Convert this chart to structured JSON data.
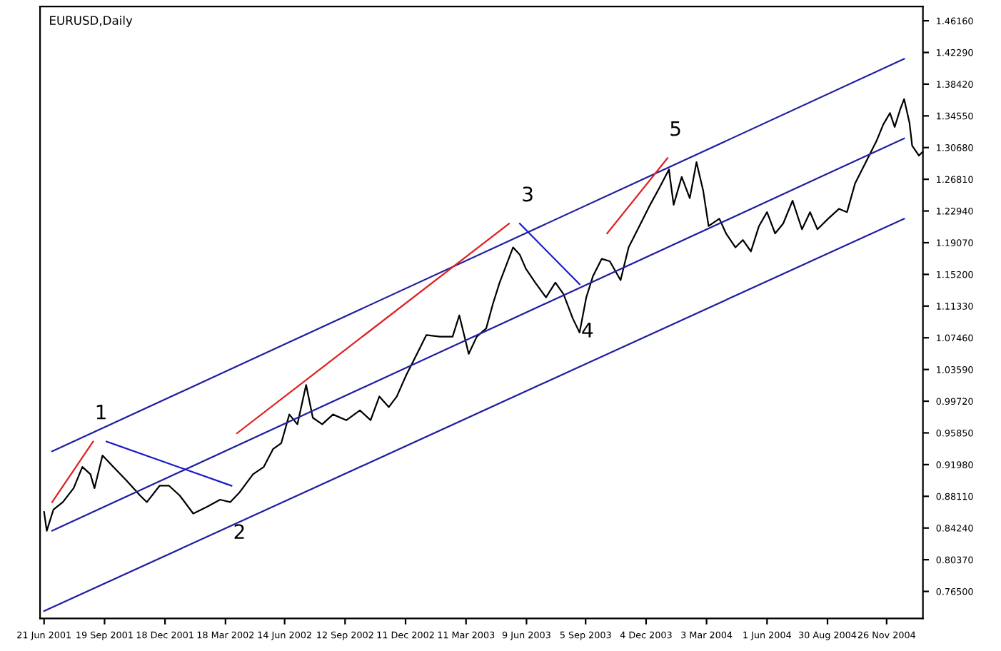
{
  "chart_data": {
    "type": "line",
    "title": "EURUSD,Daily",
    "xlim": [
      "2001-06-15",
      "2005-01-19"
    ],
    "ylim": [
      0.732,
      1.479
    ],
    "xticks": [
      {
        "value": "2001-06-21",
        "label": "21 Jun 2001"
      },
      {
        "value": "2001-09-19",
        "label": "19 Sep 2001"
      },
      {
        "value": "2001-12-18",
        "label": "18 Dec 2001"
      },
      {
        "value": "2002-03-18",
        "label": "18 Mar 2002"
      },
      {
        "value": "2002-06-14",
        "label": "14 Jun 2002"
      },
      {
        "value": "2002-09-12",
        "label": "12 Sep 2002"
      },
      {
        "value": "2002-12-11",
        "label": "11 Dec 2002"
      },
      {
        "value": "2003-03-11",
        "label": "11 Mar 2003"
      },
      {
        "value": "2003-06-09",
        "label": "9 Jun 2003"
      },
      {
        "value": "2003-09-05",
        "label": "5 Sep 2003"
      },
      {
        "value": "2003-12-04",
        "label": "4 Dec 2003"
      },
      {
        "value": "2004-03-03",
        "label": "3 Mar 2004"
      },
      {
        "value": "2004-06-01",
        "label": "1 Jun 2004"
      },
      {
        "value": "2004-08-30",
        "label": "30 Aug 2004"
      },
      {
        "value": "2004-11-26",
        "label": "26 Nov 2004"
      }
    ],
    "yticks": [
      {
        "value": 1.4616,
        "label": "1.46160"
      },
      {
        "value": 1.4229,
        "label": "1.42290"
      },
      {
        "value": 1.3842,
        "label": "1.38420"
      },
      {
        "value": 1.3455,
        "label": "1.34550"
      },
      {
        "value": 1.3068,
        "label": "1.30680"
      },
      {
        "value": 1.2681,
        "label": "1.26810"
      },
      {
        "value": 1.2294,
        "label": "1.22940"
      },
      {
        "value": 1.1907,
        "label": "1.19070"
      },
      {
        "value": 1.152,
        "label": "1.15200"
      },
      {
        "value": 1.1133,
        "label": "1.11330"
      },
      {
        "value": 1.0746,
        "label": "1.07460"
      },
      {
        "value": 1.0359,
        "label": "1.03590"
      },
      {
        "value": 0.9972,
        "label": "0.99720"
      },
      {
        "value": 0.9585,
        "label": "0.95850"
      },
      {
        "value": 0.9198,
        "label": "0.91980"
      },
      {
        "value": 0.8811,
        "label": "0.88110"
      },
      {
        "value": 0.8424,
        "label": "0.84240"
      },
      {
        "value": 0.8037,
        "label": "0.80370"
      },
      {
        "value": 0.765,
        "label": "0.76500"
      }
    ],
    "grid": false,
    "legend": false,
    "series": [
      {
        "color": "#000000",
        "x": [
          "2001-06-21",
          "2001-06-25",
          "2001-07-05",
          "2001-07-19",
          "2001-08-04",
          "2001-08-17",
          "2001-08-29",
          "2001-09-04",
          "2001-09-16",
          "2001-10-02",
          "2001-10-22",
          "2001-11-11",
          "2001-11-21",
          "2001-12-10",
          "2001-12-24",
          "2002-01-09",
          "2002-01-29",
          "2002-02-18",
          "2002-03-10",
          "2002-03-25",
          "2002-04-08",
          "2002-04-28",
          "2002-05-14",
          "2002-05-28",
          "2002-06-09",
          "2002-06-21",
          "2002-07-03",
          "2002-07-16",
          "2002-07-26",
          "2002-08-09",
          "2002-08-25",
          "2002-09-14",
          "2002-10-04",
          "2002-10-20",
          "2002-11-02",
          "2002-11-16",
          "2002-11-28",
          "2002-12-12",
          "2002-12-28",
          "2003-01-11",
          "2003-01-31",
          "2003-02-19",
          "2003-03-01",
          "2003-03-15",
          "2003-03-27",
          "2003-04-10",
          "2003-04-20",
          "2003-04-30",
          "2003-05-20",
          "2003-05-30",
          "2003-06-08",
          "2003-06-22",
          "2003-07-08",
          "2003-07-22",
          "2003-08-03",
          "2003-08-17",
          "2003-08-27",
          "2003-09-06",
          "2003-09-16",
          "2003-09-29",
          "2003-10-11",
          "2003-10-27",
          "2003-11-08",
          "2003-11-24",
          "2003-12-10",
          "2003-12-24",
          "2004-01-07",
          "2004-01-14",
          "2004-01-26",
          "2004-02-07",
          "2004-02-17",
          "2004-02-27",
          "2004-03-06",
          "2004-03-22",
          "2004-04-01",
          "2004-04-15",
          "2004-04-26",
          "2004-05-08",
          "2004-05-20",
          "2004-06-01",
          "2004-06-13",
          "2004-06-25",
          "2004-07-09",
          "2004-07-23",
          "2004-08-04",
          "2004-08-15",
          "2004-08-31",
          "2004-09-16",
          "2004-09-28",
          "2004-10-10",
          "2004-10-26",
          "2004-11-11",
          "2004-11-21",
          "2004-12-01",
          "2004-12-08",
          "2004-12-16",
          "2004-12-22",
          "2004-12-30",
          "2005-01-03",
          "2005-01-13",
          "2005-01-19"
        ],
        "values": [
          0.862,
          0.839,
          0.865,
          0.874,
          0.891,
          0.917,
          0.908,
          0.891,
          0.931,
          0.917,
          0.9,
          0.882,
          0.874,
          0.894,
          0.894,
          0.882,
          0.86,
          0.868,
          0.877,
          0.874,
          0.886,
          0.908,
          0.917,
          0.939,
          0.946,
          0.981,
          0.969,
          1.017,
          0.977,
          0.969,
          0.981,
          0.974,
          0.986,
          0.974,
          1.003,
          0.99,
          1.003,
          1.029,
          1.055,
          1.078,
          1.076,
          1.076,
          1.102,
          1.055,
          1.076,
          1.086,
          1.116,
          1.142,
          1.185,
          1.176,
          1.159,
          1.142,
          1.124,
          1.142,
          1.128,
          1.098,
          1.081,
          1.124,
          1.15,
          1.171,
          1.168,
          1.145,
          1.185,
          1.211,
          1.237,
          1.258,
          1.28,
          1.237,
          1.271,
          1.245,
          1.289,
          1.254,
          1.211,
          1.22,
          1.202,
          1.185,
          1.194,
          1.18,
          1.211,
          1.228,
          1.202,
          1.214,
          1.242,
          1.207,
          1.228,
          1.207,
          1.22,
          1.232,
          1.228,
          1.263,
          1.289,
          1.315,
          1.335,
          1.349,
          1.332,
          1.353,
          1.366,
          1.337,
          1.309,
          1.297,
          1.302
        ]
      },
      {
        "color": "#2020a0",
        "x": [
          "2001-07-03",
          "2004-12-22"
        ],
        "values": [
          0.936,
          1.415
        ]
      },
      {
        "color": "#2020a0",
        "x": [
          "2001-07-03",
          "2004-12-22"
        ],
        "values": [
          0.839,
          1.318
        ]
      },
      {
        "color": "#2020a0",
        "x": [
          "2001-06-21",
          "2004-12-22"
        ],
        "values": [
          0.741,
          1.22
        ]
      },
      {
        "color": "#e02020",
        "x": [
          "2001-07-03",
          "2001-09-02"
        ],
        "values": [
          0.874,
          0.948
        ]
      },
      {
        "color": "#1a1acc",
        "x": [
          "2001-09-22",
          "2002-03-27"
        ],
        "values": [
          0.948,
          0.894
        ]
      },
      {
        "color": "#e02020",
        "x": [
          "2002-04-04",
          "2003-05-14"
        ],
        "values": [
          0.958,
          1.214
        ]
      },
      {
        "color": "#1a1acc",
        "x": [
          "2003-05-30",
          "2003-08-27"
        ],
        "values": [
          1.214,
          1.14
        ]
      },
      {
        "color": "#e02020",
        "x": [
          "2003-10-07",
          "2004-01-05"
        ],
        "values": [
          1.202,
          1.294
        ]
      }
    ],
    "annotations": [
      {
        "text": "1",
        "x": "2001-09-02",
        "y": 0.948
      },
      {
        "text": "2",
        "x": "2002-03-27",
        "y": 0.894
      },
      {
        "text": "3",
        "x": "2003-05-30",
        "y": 1.214
      },
      {
        "text": "4",
        "x": "2003-08-27",
        "y": 1.14
      },
      {
        "text": "5",
        "x": "2004-01-05",
        "y": 1.294
      }
    ]
  }
}
